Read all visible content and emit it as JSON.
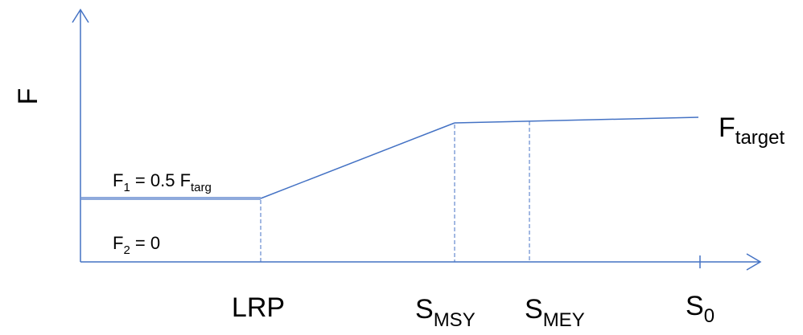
{
  "diagram": {
    "y_axis_label": "F",
    "f_target": {
      "main": "F",
      "sub": "target"
    },
    "f1_label": {
      "main": "F",
      "sub": "1",
      "middle": " = 0.5 F",
      "sub2": "targ"
    },
    "f2_label": {
      "main": "F",
      "sub": "2",
      "rest": " = 0"
    },
    "x_labels": {
      "lrp": "LRP",
      "smsy": {
        "main": "S",
        "sub": "MSY"
      },
      "smey": {
        "main": "S",
        "sub": "MEY"
      },
      "s0": {
        "main": "S",
        "sub": "0"
      }
    },
    "colors": {
      "axis": "#4472C4",
      "thick_line": "#8FAADC",
      "text": "#000000"
    }
  }
}
